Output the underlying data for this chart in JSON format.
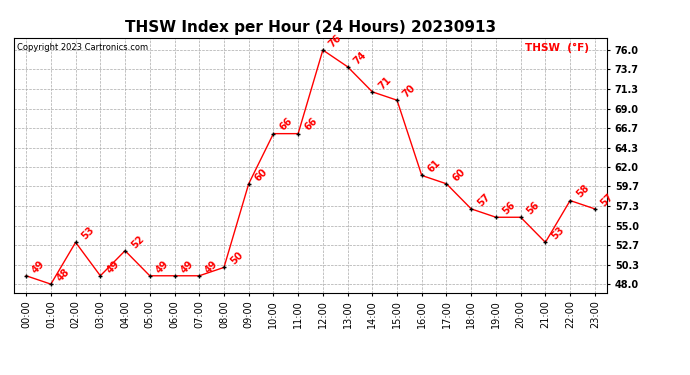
{
  "title": "THSW Index per Hour (24 Hours) 20230913",
  "copyright": "Copyright 2023 Cartronics.com",
  "legend_label": "THSW  (°F)",
  "hours": [
    "00:00",
    "01:00",
    "02:00",
    "03:00",
    "04:00",
    "05:00",
    "06:00",
    "07:00",
    "08:00",
    "09:00",
    "10:00",
    "11:00",
    "12:00",
    "13:00",
    "14:00",
    "15:00",
    "16:00",
    "17:00",
    "18:00",
    "19:00",
    "20:00",
    "21:00",
    "22:00",
    "23:00"
  ],
  "values": [
    49,
    48,
    53,
    49,
    52,
    49,
    49,
    49,
    50,
    60,
    66,
    66,
    76,
    74,
    71,
    70,
    61,
    60,
    57,
    56,
    56,
    53,
    58,
    57
  ],
  "line_color": "red",
  "marker_color": "black",
  "label_color": "red",
  "yticks": [
    48.0,
    50.3,
    52.7,
    55.0,
    57.3,
    59.7,
    62.0,
    64.3,
    66.7,
    69.0,
    71.3,
    73.7,
    76.0
  ],
  "ylim_min": 47.0,
  "ylim_max": 77.5,
  "background_color": "white",
  "grid_color": "#aaaaaa",
  "title_fontsize": 11,
  "tick_fontsize": 7,
  "annotation_fontsize": 7
}
